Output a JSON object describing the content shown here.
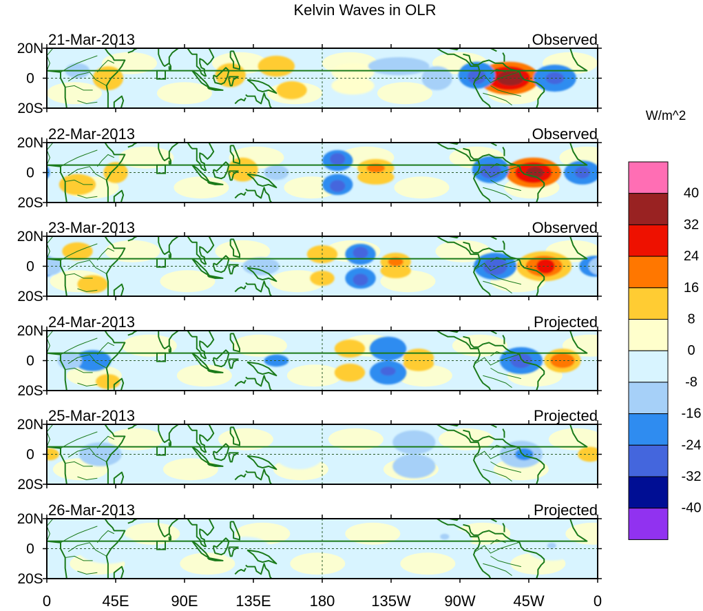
{
  "title": "Kelvin Waves in OLR",
  "colorbar": {
    "units": "W/m^2",
    "levels": [
      {
        "label": "",
        "color": "#ff6eb4"
      },
      {
        "label": "40",
        "color": "#992222"
      },
      {
        "label": "32",
        "color": "#ee1100"
      },
      {
        "label": "24",
        "color": "#ff7700"
      },
      {
        "label": "16",
        "color": "#ffcc33"
      },
      {
        "label": "8",
        "color": "#ffffcc"
      },
      {
        "label": "0",
        "color": "#d8f4ff"
      },
      {
        "label": "-8",
        "color": "#a6d0f8"
      },
      {
        "label": "-16",
        "color": "#2f8cf0"
      },
      {
        "label": "-24",
        "color": "#4466dd"
      },
      {
        "label": "-32",
        "color": "#000e94"
      },
      {
        "label": "-40",
        "color": "#9132f0"
      }
    ]
  },
  "axes": {
    "y_ticks": [
      "20N",
      "0",
      "20S"
    ],
    "x_ticks": [
      "0",
      "45E",
      "90E",
      "135E",
      "180",
      "135W",
      "90W",
      "45W",
      "0"
    ]
  },
  "panels": [
    {
      "date": "21-Mar-2013",
      "status": "Observed",
      "blobs": [
        {
          "lon": 302,
          "lat": 0,
          "rlon": 20,
          "rlat": 11,
          "level": 3
        },
        {
          "lon": 302,
          "lat": 0,
          "rlon": 14,
          "rlat": 8,
          "level": 2
        },
        {
          "lon": 303,
          "lat": 0,
          "rlon": 9,
          "rlat": 5,
          "level": 1
        },
        {
          "lon": 281,
          "lat": 2,
          "rlon": 12,
          "rlat": 9,
          "level": 8
        },
        {
          "lon": 281,
          "lat": 1,
          "rlon": 6,
          "rlat": 5,
          "level": 9
        },
        {
          "lon": 332,
          "lat": 0,
          "rlon": 14,
          "rlat": 9,
          "level": 8
        },
        {
          "lon": 332,
          "lat": 0,
          "rlon": 6,
          "rlat": 4,
          "level": 9
        },
        {
          "lon": 150,
          "lat": 8,
          "rlon": 12,
          "rlat": 7,
          "level": 4
        },
        {
          "lon": 160,
          "lat": -8,
          "rlon": 10,
          "rlat": 6,
          "level": 4
        },
        {
          "lon": 120,
          "lat": 2,
          "rlon": 10,
          "rlat": 8,
          "level": 4
        },
        {
          "lon": 200,
          "lat": 4,
          "rlon": 14,
          "rlat": 6,
          "level": 5
        },
        {
          "lon": 200,
          "lat": -5,
          "rlon": 14,
          "rlat": 6,
          "level": 5
        },
        {
          "lon": 230,
          "lat": 8,
          "rlon": 20,
          "rlat": 6,
          "level": 7
        },
        {
          "lon": 40,
          "lat": 0,
          "rlon": 10,
          "rlat": 8,
          "level": 4
        },
        {
          "lon": 20,
          "lat": 5,
          "rlon": 8,
          "rlat": 5,
          "level": 7
        },
        {
          "lon": 255,
          "lat": 0,
          "rlon": 10,
          "rlat": 8,
          "level": 7
        }
      ]
    },
    {
      "date": "22-Mar-2013",
      "status": "Observed",
      "blobs": [
        {
          "lon": 318,
          "lat": 0,
          "rlon": 18,
          "rlat": 10,
          "level": 3
        },
        {
          "lon": 318,
          "lat": 0,
          "rlon": 12,
          "rlat": 7,
          "level": 2
        },
        {
          "lon": 319,
          "lat": 0,
          "rlon": 6,
          "rlat": 4,
          "level": 1
        },
        {
          "lon": 290,
          "lat": 2,
          "rlon": 12,
          "rlat": 9,
          "level": 8
        },
        {
          "lon": 290,
          "lat": 1,
          "rlon": 7,
          "rlat": 5,
          "level": 9
        },
        {
          "lon": 350,
          "lat": 0,
          "rlon": 12,
          "rlat": 8,
          "level": 8
        },
        {
          "lon": 350,
          "lat": 0,
          "rlon": 5,
          "rlat": 4,
          "level": 9
        },
        {
          "lon": 190,
          "lat": 8,
          "rlon": 10,
          "rlat": 7,
          "level": 8
        },
        {
          "lon": 190,
          "lat": -8,
          "rlon": 10,
          "rlat": 7,
          "level": 8
        },
        {
          "lon": 190,
          "lat": 9,
          "rlon": 5,
          "rlat": 4,
          "level": 9
        },
        {
          "lon": 190,
          "lat": -9,
          "rlon": 5,
          "rlat": 4,
          "level": 9
        },
        {
          "lon": 215,
          "lat": 3,
          "rlon": 12,
          "rlat": 6,
          "level": 4
        },
        {
          "lon": 215,
          "lat": -3,
          "rlon": 12,
          "rlat": 5,
          "level": 4
        },
        {
          "lon": 215,
          "lat": 3,
          "rlon": 6,
          "rlat": 3,
          "level": 3
        },
        {
          "lon": 128,
          "lat": 2,
          "rlon": 10,
          "rlat": 8,
          "level": 4
        },
        {
          "lon": 45,
          "lat": 0,
          "rlon": 8,
          "rlat": 7,
          "level": 4
        },
        {
          "lon": 150,
          "lat": 0,
          "rlon": 8,
          "rlat": 5,
          "level": 7
        },
        {
          "lon": 20,
          "lat": -8,
          "rlon": 12,
          "rlat": 7,
          "level": 4
        }
      ]
    },
    {
      "date": "23-Mar-2013",
      "status": "Observed",
      "blobs": [
        {
          "lon": 325,
          "lat": 0,
          "rlon": 18,
          "rlat": 10,
          "level": 4
        },
        {
          "lon": 325,
          "lat": 0,
          "rlon": 12,
          "rlat": 7,
          "level": 3
        },
        {
          "lon": 326,
          "lat": 0,
          "rlon": 6,
          "rlat": 5,
          "level": 2
        },
        {
          "lon": 293,
          "lat": 0,
          "rlon": 14,
          "rlat": 9,
          "level": 8
        },
        {
          "lon": 293,
          "lat": 0,
          "rlon": 8,
          "rlat": 6,
          "level": 9
        },
        {
          "lon": 205,
          "lat": 8,
          "rlon": 10,
          "rlat": 7,
          "level": 8
        },
        {
          "lon": 205,
          "lat": -8,
          "rlon": 10,
          "rlat": 7,
          "level": 8
        },
        {
          "lon": 205,
          "lat": 9,
          "rlon": 5,
          "rlat": 4,
          "level": 9
        },
        {
          "lon": 205,
          "lat": -9,
          "rlon": 5,
          "rlat": 4,
          "level": 9
        },
        {
          "lon": 228,
          "lat": 3,
          "rlon": 10,
          "rlat": 6,
          "level": 4
        },
        {
          "lon": 228,
          "lat": -3,
          "rlon": 10,
          "rlat": 5,
          "level": 4
        },
        {
          "lon": 228,
          "lat": 3,
          "rlon": 5,
          "rlat": 3,
          "level": 3
        },
        {
          "lon": 180,
          "lat": 8,
          "rlon": 10,
          "rlat": 6,
          "level": 4
        },
        {
          "lon": 180,
          "lat": -8,
          "rlon": 8,
          "rlat": 5,
          "level": 4
        },
        {
          "lon": 358,
          "lat": 0,
          "rlon": 10,
          "rlat": 7,
          "level": 8
        },
        {
          "lon": 2,
          "lat": 0,
          "rlon": 8,
          "rlat": 6,
          "level": 7
        },
        {
          "lon": 140,
          "lat": 0,
          "rlon": 12,
          "rlat": 6,
          "level": 7
        },
        {
          "lon": 20,
          "lat": 10,
          "rlon": 10,
          "rlat": 6,
          "level": 4
        },
        {
          "lon": 30,
          "lat": -12,
          "rlon": 10,
          "rlat": 6,
          "level": 4
        }
      ]
    },
    {
      "date": "24-Mar-2013",
      "status": "Projected",
      "blobs": [
        {
          "lon": 337,
          "lat": 0,
          "rlon": 12,
          "rlat": 8,
          "level": 4
        },
        {
          "lon": 337,
          "lat": 0,
          "rlon": 8,
          "rlat": 5,
          "level": 3
        },
        {
          "lon": 310,
          "lat": 0,
          "rlon": 14,
          "rlat": 9,
          "level": 8
        },
        {
          "lon": 310,
          "lat": 0,
          "rlon": 7,
          "rlat": 5,
          "level": 9
        },
        {
          "lon": 223,
          "lat": 8,
          "rlon": 12,
          "rlat": 8,
          "level": 8
        },
        {
          "lon": 223,
          "lat": -8,
          "rlon": 12,
          "rlat": 8,
          "level": 8
        },
        {
          "lon": 223,
          "lat": -7,
          "rlon": 5,
          "rlat": 3,
          "level": 9
        },
        {
          "lon": 198,
          "lat": 8,
          "rlon": 10,
          "rlat": 6,
          "level": 4
        },
        {
          "lon": 198,
          "lat": -8,
          "rlon": 10,
          "rlat": 6,
          "level": 4
        },
        {
          "lon": 243,
          "lat": 2,
          "rlon": 10,
          "rlat": 6,
          "level": 4
        },
        {
          "lon": 243,
          "lat": -2,
          "rlon": 10,
          "rlat": 5,
          "level": 4
        },
        {
          "lon": 30,
          "lat": 0,
          "rlon": 12,
          "rlat": 7,
          "level": 8
        },
        {
          "lon": 15,
          "lat": 0,
          "rlon": 8,
          "rlat": 6,
          "level": 7
        },
        {
          "lon": 150,
          "lat": 0,
          "rlon": 8,
          "rlat": 4,
          "level": 8
        },
        {
          "lon": 40,
          "lat": -14,
          "rlon": 8,
          "rlat": 5,
          "level": 4
        }
      ]
    },
    {
      "date": "25-Mar-2013",
      "status": "Projected",
      "blobs": [
        {
          "lon": 240,
          "lat": 8,
          "rlon": 14,
          "rlat": 8,
          "level": 7
        },
        {
          "lon": 240,
          "lat": -8,
          "rlon": 14,
          "rlat": 8,
          "level": 7
        },
        {
          "lon": 310,
          "lat": 0,
          "rlon": 14,
          "rlat": 9,
          "level": 7
        },
        {
          "lon": 312,
          "lat": 0,
          "rlon": 6,
          "rlat": 4,
          "level": 8
        },
        {
          "lon": 355,
          "lat": 0,
          "rlon": 8,
          "rlat": 5,
          "level": 4
        },
        {
          "lon": 2,
          "lat": 0,
          "rlon": 6,
          "rlat": 4,
          "level": 4
        },
        {
          "lon": 35,
          "lat": 0,
          "rlon": 14,
          "rlat": 8,
          "level": 7
        },
        {
          "lon": 165,
          "lat": 0,
          "rlon": 16,
          "rlat": 10,
          "level": 6
        }
      ]
    },
    {
      "date": "26-Mar-2013",
      "status": "Projected",
      "blobs": [
        {
          "lon": 40,
          "lat": 0,
          "rlon": 20,
          "rlat": 10,
          "level": 6
        },
        {
          "lon": 260,
          "lat": 6,
          "rlon": 18,
          "rlat": 8,
          "level": 6
        },
        {
          "lon": 330,
          "lat": 0,
          "rlon": 16,
          "rlat": 8,
          "level": 6
        },
        {
          "lon": 130,
          "lat": 0,
          "rlon": 16,
          "rlat": 8,
          "level": 6
        },
        {
          "lon": 260,
          "lat": 8,
          "rlon": 3,
          "rlat": 2,
          "level": 7
        },
        {
          "lon": 330,
          "lat": 2,
          "rlon": 3,
          "rlat": 2,
          "level": 7
        }
      ]
    }
  ]
}
